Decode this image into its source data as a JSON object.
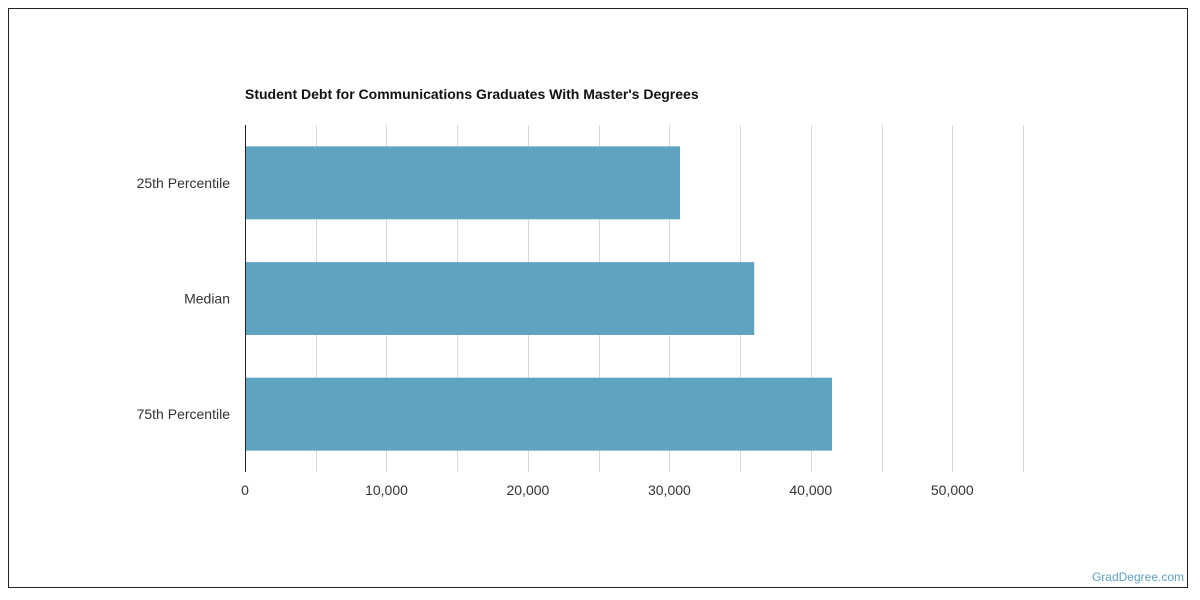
{
  "chart_data": {
    "type": "bar",
    "orientation": "horizontal",
    "title": "Student Debt for Communications Graduates With Master's Degrees",
    "categories": [
      "25th Percentile",
      "Median",
      "75th Percentile"
    ],
    "values": [
      30750,
      36000,
      41500
    ],
    "xlim": [
      0,
      55000
    ],
    "x_ticks": [
      0,
      10000,
      20000,
      30000,
      40000,
      50000
    ],
    "x_tick_labels": [
      "0",
      "10,000",
      "20,000",
      "30,000",
      "40,000",
      "50,000"
    ],
    "grid": true,
    "bar_color": "#5ea3c0",
    "grid_color": "#d9d9d9",
    "axis_color": "#222222"
  },
  "watermark": "GradDegree.com"
}
